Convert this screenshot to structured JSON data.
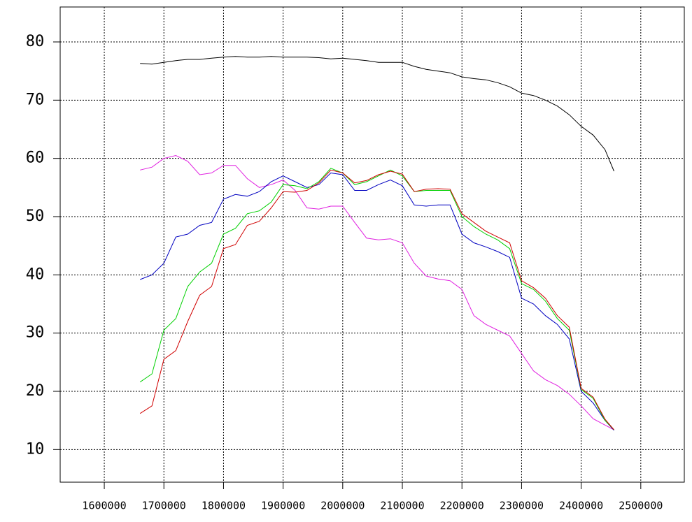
{
  "chart_data": {
    "type": "line",
    "x": [
      1660000,
      1680000,
      1700000,
      1720000,
      1740000,
      1760000,
      1780000,
      1800000,
      1820000,
      1840000,
      1860000,
      1880000,
      1900000,
      1920000,
      1940000,
      1960000,
      1980000,
      2000000,
      2020000,
      2040000,
      2060000,
      2080000,
      2100000,
      2120000,
      2140000,
      2160000,
      2180000,
      2200000,
      2220000,
      2240000,
      2260000,
      2280000,
      2300000,
      2320000,
      2340000,
      2360000,
      2380000,
      2400000,
      2420000,
      2440000,
      2455000
    ],
    "series": [
      {
        "color": "#000000",
        "values": [
          76.3,
          76.2,
          76.5,
          76.8,
          77,
          77,
          77.2,
          77.4,
          77.5,
          77.4,
          77.4,
          77.5,
          77.4,
          77.4,
          77.4,
          77.3,
          77.1,
          77.2,
          77,
          76.8,
          76.5,
          76.5,
          76.5,
          75.8,
          75.3,
          75,
          74.7,
          74,
          73.7,
          73.5,
          73,
          72.3,
          71.2,
          70.8,
          70,
          69,
          67.5,
          65.5,
          64,
          61.5,
          57.8
        ]
      },
      {
        "color": "#e020e0",
        "values": [
          58,
          58.5,
          60,
          60.5,
          59.5,
          57.2,
          57.5,
          58.8,
          58.8,
          56.5,
          55,
          55.5,
          56.3,
          54.5,
          51.5,
          51.3,
          51.8,
          51.8,
          49,
          46.3,
          46,
          46.2,
          45.5,
          42,
          39.8,
          39.3,
          39,
          37.5,
          33,
          31.5,
          30.5,
          29.5,
          26.5,
          23.5,
          22,
          21,
          19.5,
          17.5,
          15.3,
          14.2,
          13.4
        ]
      },
      {
        "color": "#0000c0",
        "values": [
          39.2,
          40,
          42,
          46.5,
          47,
          48.5,
          49,
          53,
          53.8,
          53.5,
          54.3,
          56,
          57,
          56,
          55,
          55.5,
          57.5,
          57.2,
          54.5,
          54.5,
          55.5,
          56.3,
          55.3,
          52,
          51.8,
          52,
          52,
          47,
          45.5,
          44.8,
          44,
          43,
          36,
          35,
          33,
          31.5,
          29,
          20,
          18,
          15,
          13.3
        ]
      },
      {
        "color": "#00d000",
        "values": [
          21.6,
          23,
          30.5,
          32.5,
          38,
          40.5,
          42,
          47,
          48,
          50.5,
          51,
          52.5,
          55.5,
          55.3,
          54.8,
          56,
          58.3,
          57.5,
          55.5,
          56,
          57,
          58,
          57,
          54.3,
          54.5,
          54.5,
          54.5,
          50,
          48.3,
          47,
          46,
          44.5,
          38.5,
          37.5,
          35.5,
          32.5,
          30.5,
          20.3,
          18.8,
          15,
          13.4
        ]
      },
      {
        "color": "#d00000",
        "values": [
          16.2,
          17.5,
          25.5,
          27,
          32,
          36.5,
          38,
          44.5,
          45.2,
          48.5,
          49.2,
          51.5,
          54.3,
          54.2,
          54.5,
          55.8,
          58,
          57.5,
          55.8,
          56.2,
          57.2,
          57.8,
          57.3,
          54.3,
          54.7,
          54.8,
          54.7,
          50.5,
          49,
          47.5,
          46.5,
          45.5,
          39,
          37.8,
          36,
          33,
          31,
          20.5,
          19,
          15.2,
          13.4
        ]
      }
    ],
    "xlim": [
      1526000,
      2573000
    ],
    "ylim": [
      4.4,
      86
    ],
    "xticks": [
      1600000,
      1700000,
      1800000,
      1900000,
      2000000,
      2100000,
      2200000,
      2300000,
      2400000,
      2500000
    ],
    "yticks": [
      10,
      20,
      30,
      40,
      50,
      60,
      70,
      80
    ],
    "grid": true
  }
}
